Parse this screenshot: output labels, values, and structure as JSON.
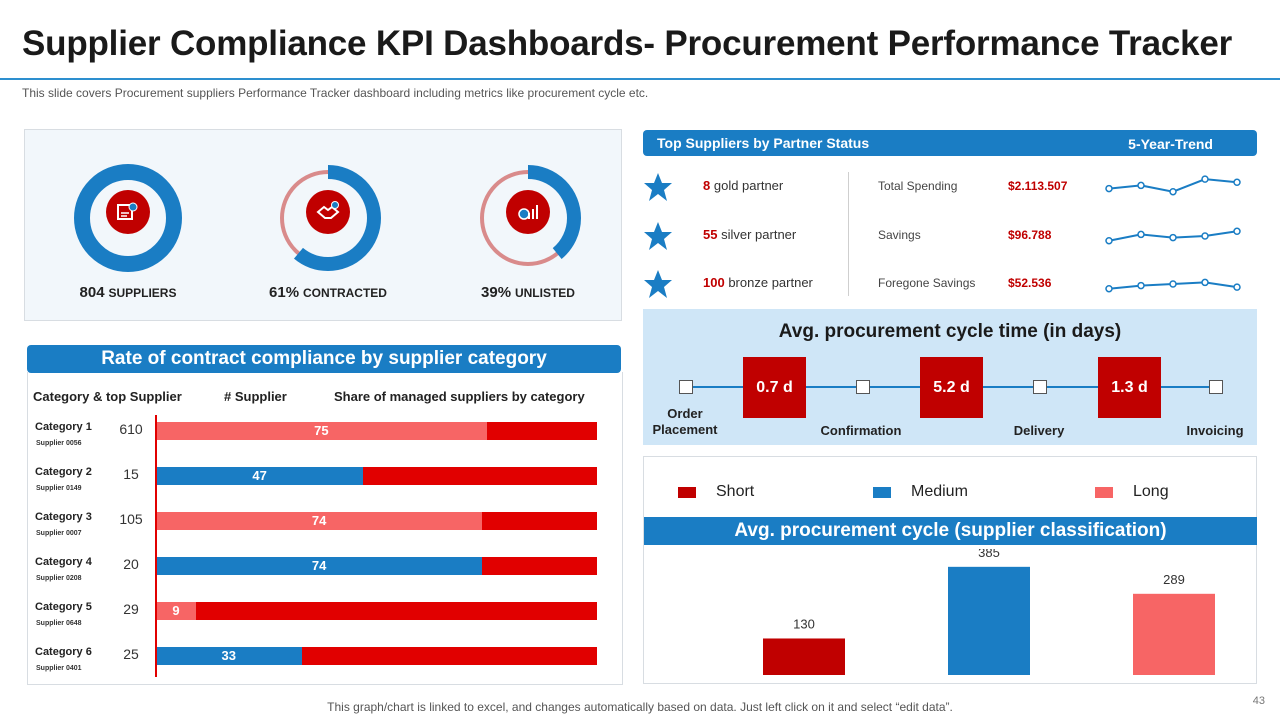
{
  "header": {
    "title": "Supplier Compliance KPI Dashboards- Procurement Performance Tracker",
    "subtitle": "This slide covers Procurement suppliers Performance Tracker dashboard including metrics like procurement cycle etc."
  },
  "kpis": [
    {
      "value": "804",
      "unit": "SUPPLIERS",
      "fraction": 1.0,
      "icon": "supplier-icon"
    },
    {
      "value": "61%",
      "unit": "CONTRACTED",
      "fraction": 0.61,
      "icon": "handshake-icon"
    },
    {
      "value": "39%",
      "unit": "UNLISTED",
      "fraction": 0.39,
      "icon": "chart-growth-icon"
    }
  ],
  "partners": {
    "header": "Top Suppliers by Partner Status",
    "trend_label": "5-Year-Trend",
    "rows": [
      {
        "count": "8",
        "name": "gold partner",
        "metric": "Total Spending",
        "value": "$2.113.507",
        "trend": [
          3,
          4,
          2,
          6,
          5
        ]
      },
      {
        "count": "55",
        "name": "silver partner",
        "metric": "Savings",
        "value": "$96.788",
        "trend": [
          2,
          4,
          3,
          3.5,
          5
        ]
      },
      {
        "count": "100",
        "name": "bronze partner",
        "metric": "Foregone Savings",
        "value": "$52.536",
        "trend": [
          2,
          3,
          3.5,
          4,
          2.5
        ]
      }
    ]
  },
  "cycle_time": {
    "title": "Avg. procurement cycle time (in days)",
    "stages": [
      "Order\nPlacement",
      "Confirmation",
      "Delivery",
      "Invoicing"
    ],
    "durations": [
      "0.7 d",
      "5.2 d",
      "1.3 d"
    ]
  },
  "compliance": {
    "header": "Rate of contract compliance by supplier category",
    "col_category": "Category & top Supplier",
    "col_supplier": "# Supplier",
    "col_share": "Share of managed suppliers by category",
    "rows": [
      {
        "category": "Category 1",
        "supplier": "Supplier 0056",
        "count": "610",
        "share": 75,
        "color": "#f76565"
      },
      {
        "category": "Category 2",
        "supplier": "Supplier 0149",
        "count": "15",
        "share": 47,
        "color": "#1a7dc4"
      },
      {
        "category": "Category 3",
        "supplier": "Supplier 0007",
        "count": "105",
        "share": 74,
        "color": "#f76565"
      },
      {
        "category": "Category 4",
        "supplier": "Supplier 0208",
        "count": "20",
        "share": 74,
        "color": "#1a7dc4"
      },
      {
        "category": "Category 5",
        "supplier": "Supplier 0648",
        "count": "29",
        "share": 9,
        "color": "#f76565"
      },
      {
        "category": "Category 6",
        "supplier": "Supplier 0401",
        "count": "25",
        "share": 33,
        "color": "#1a7dc4"
      }
    ]
  },
  "chart_data": {
    "type": "bar",
    "title": "Avg. procurement cycle (supplier classification)",
    "categories": [
      "Short",
      "Medium",
      "Long"
    ],
    "values": [
      130,
      385,
      289
    ],
    "colors": [
      "#c00000",
      "#1a7dc4",
      "#f76565"
    ],
    "legend_position": "top",
    "ylim": [
      0,
      420
    ]
  },
  "footer": "This graph/chart is linked to excel, and changes automatically based on data. Just left click on it and select “edit data”.",
  "page_number": "43",
  "colors": {
    "blue": "#1a7dc4",
    "red": "#c00000",
    "light_red": "#f76565",
    "bright_red": "#e10000"
  }
}
